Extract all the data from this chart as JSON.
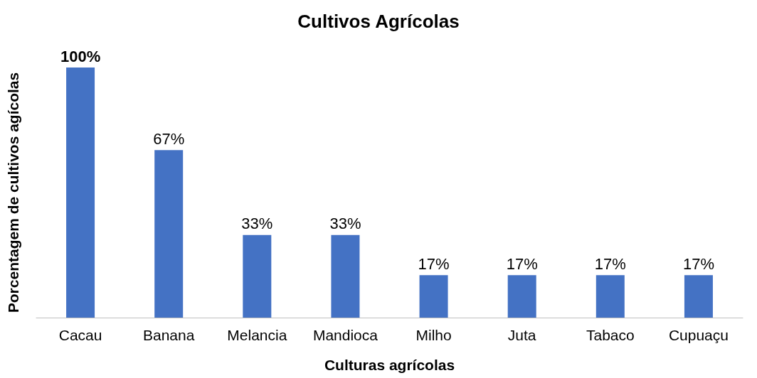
{
  "chart_data": {
    "type": "bar",
    "title": "Cultivos Agrícolas",
    "xlabel": "Culturas agrícolas",
    "ylabel": "Porcentagem de cultivos agícolas",
    "categories": [
      "Cacau",
      "Banana",
      "Melancia",
      "Mandioca",
      "Milho",
      "Juta",
      "Tabaco",
      "Cupuaçu"
    ],
    "values": [
      100,
      67,
      33,
      33,
      17,
      17,
      17,
      17
    ],
    "value_labels": [
      "100%",
      "67%",
      "33%",
      "33%",
      "17%",
      "17%",
      "17%",
      "17%"
    ],
    "color": "#4472c4",
    "grid": false
  }
}
